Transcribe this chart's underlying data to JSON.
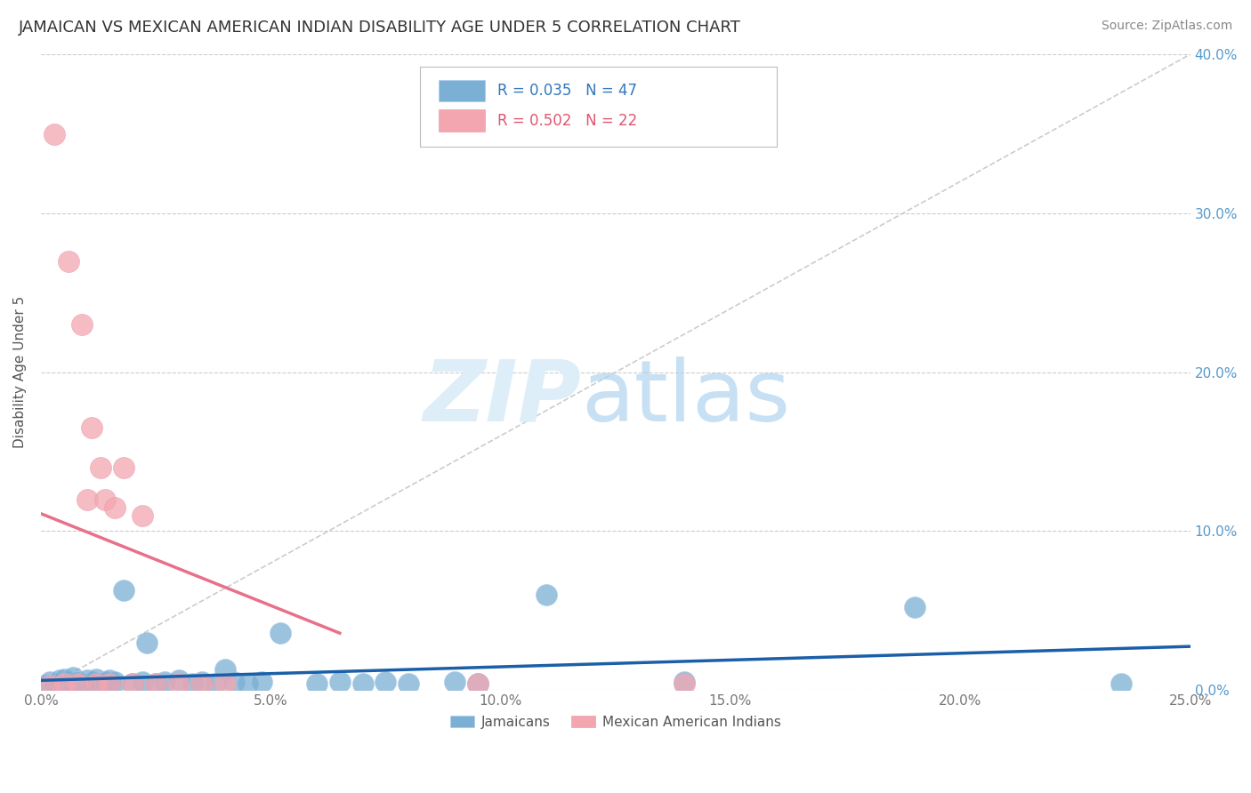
{
  "title": "JAMAICAN VS MEXICAN AMERICAN INDIAN DISABILITY AGE UNDER 5 CORRELATION CHART",
  "source": "Source: ZipAtlas.com",
  "ylabel_label": "Disability Age Under 5",
  "xlim": [
    0.0,
    0.25
  ],
  "ylim": [
    0.0,
    0.4
  ],
  "xticks": [
    0.0,
    0.05,
    0.1,
    0.15,
    0.2,
    0.25
  ],
  "yticks": [
    0.0,
    0.1,
    0.2,
    0.3,
    0.4
  ],
  "xtick_labels": [
    "0.0%",
    "5.0%",
    "10.0%",
    "15.0%",
    "20.0%",
    "25.0%"
  ],
  "ytick_labels": [
    "0.0%",
    "10.0%",
    "20.0%",
    "30.0%",
    "40.0%"
  ],
  "jamaican_color": "#7bafd4",
  "mexican_color": "#f4a6b0",
  "jamaican_line_color": "#1a5fa8",
  "mexican_line_color": "#e8718a",
  "diagonal_color": "#cccccc",
  "R_jamaican": 0.035,
  "N_jamaican": 47,
  "R_mexican": 0.502,
  "N_mexican": 22,
  "legend_jamaican_label": "Jamaicans",
  "legend_mexican_label": "Mexican American Indians",
  "jamaican_x": [
    0.001,
    0.002,
    0.003,
    0.004,
    0.005,
    0.005,
    0.006,
    0.007,
    0.007,
    0.008,
    0.009,
    0.01,
    0.01,
    0.011,
    0.012,
    0.012,
    0.013,
    0.014,
    0.015,
    0.015,
    0.016,
    0.018,
    0.02,
    0.022,
    0.023,
    0.025,
    0.027,
    0.03,
    0.033,
    0.035,
    0.038,
    0.04,
    0.042,
    0.045,
    0.048,
    0.052,
    0.06,
    0.065,
    0.07,
    0.075,
    0.08,
    0.09,
    0.095,
    0.11,
    0.14,
    0.19,
    0.235
  ],
  "jamaican_y": [
    0.003,
    0.005,
    0.004,
    0.006,
    0.003,
    0.007,
    0.005,
    0.004,
    0.008,
    0.005,
    0.004,
    0.006,
    0.003,
    0.005,
    0.004,
    0.007,
    0.003,
    0.005,
    0.004,
    0.006,
    0.005,
    0.063,
    0.004,
    0.005,
    0.03,
    0.004,
    0.005,
    0.006,
    0.004,
    0.005,
    0.004,
    0.013,
    0.005,
    0.004,
    0.005,
    0.036,
    0.004,
    0.005,
    0.004,
    0.005,
    0.004,
    0.005,
    0.004,
    0.06,
    0.005,
    0.052,
    0.004
  ],
  "mexican_x": [
    0.002,
    0.003,
    0.005,
    0.006,
    0.008,
    0.009,
    0.01,
    0.011,
    0.012,
    0.013,
    0.014,
    0.015,
    0.016,
    0.018,
    0.02,
    0.022,
    0.025,
    0.03,
    0.035,
    0.04,
    0.095,
    0.14
  ],
  "mexican_y": [
    0.003,
    0.35,
    0.004,
    0.27,
    0.004,
    0.23,
    0.12,
    0.165,
    0.004,
    0.14,
    0.12,
    0.004,
    0.115,
    0.14,
    0.004,
    0.11,
    0.004,
    0.004,
    0.004,
    0.004,
    0.004,
    0.004
  ]
}
